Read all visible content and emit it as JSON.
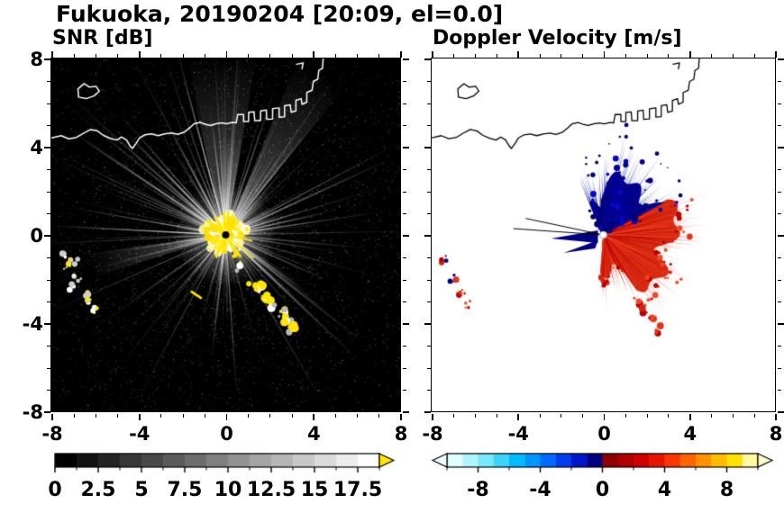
{
  "title": "Fukuoka, 20190204 [20:09, el=0.0]",
  "chart_data": {
    "type": "heatmap",
    "figure_title": "Fukuoka, 20190204 [20:09, el=0.0]",
    "station": "Fukuoka",
    "date": "20190204",
    "time": "20:09",
    "elevation_deg": 0.0,
    "panels": [
      {
        "title": "SNR [dB]",
        "background": "#000000",
        "xlim": [
          -8,
          8
        ],
        "ylim": [
          -8,
          8
        ],
        "xticks": [
          -8,
          -4,
          0,
          4,
          8
        ],
        "xtick_labels": [
          "-8",
          "-4",
          "0",
          "4",
          "8"
        ],
        "yticks": [
          8,
          4,
          0,
          -4,
          -8
        ],
        "ytick_labels": [
          "8",
          "4",
          "0",
          "-4",
          "-8"
        ],
        "show_ytick_labels": true,
        "minor_tick_step": 1,
        "colorbar": {
          "min": 0,
          "max": 18.75,
          "segments": 15,
          "palette": "grayscale-black-to-white",
          "over_arrow_color": "#ffe600",
          "tick_values": [
            0,
            2.5,
            5,
            7.5,
            10,
            12.5,
            15,
            17.5
          ],
          "tick_labels": [
            "0",
            "2.5",
            "5",
            "7.5",
            "10",
            "12.5",
            "15",
            "17.5"
          ],
          "minor_step": 1.25
        },
        "features": {
          "radar_center": [
            0,
            0
          ],
          "clutter": "radial ground-clutter streaks fanning out from radar site",
          "core": "strong echo core above 17.5 dB (yellow) around radar",
          "echo_chain": [
            [
              0.45,
              -1.0
            ],
            [
              3.15,
              -4.35
            ]
          ],
          "dash": [
            -1.35,
            -2.72
          ],
          "west_specks": [
            [
              -7.45,
              -0.95
            ],
            [
              -7.25,
              -1.45
            ],
            [
              -6.95,
              -1.25
            ],
            [
              -6.8,
              -1.95
            ],
            [
              -7.05,
              -2.35
            ],
            [
              -6.5,
              -2.6
            ],
            [
              -6.3,
              -3.05
            ],
            [
              -6.0,
              -3.35
            ]
          ]
        }
      },
      {
        "title": "Doppler Velocity [m/s]",
        "background": "#ffffff",
        "xlim": [
          -8,
          8
        ],
        "ylim": [
          -8,
          8
        ],
        "xticks": [
          -8,
          -4,
          0,
          4,
          8
        ],
        "xtick_labels": [
          "-8",
          "-4",
          "0",
          "4",
          "8"
        ],
        "yticks": [
          8,
          4,
          0,
          -4,
          -8
        ],
        "ytick_labels": [
          "8",
          "4",
          "0",
          "-4",
          "-8"
        ],
        "show_ytick_labels": false,
        "minor_tick_step": 1,
        "colorbar": {
          "min": -10,
          "max": 10,
          "segments": 20,
          "segment_colors": [
            "#e0ffff",
            "#b0f4ff",
            "#78e8ff",
            "#3cd4ff",
            "#00bcff",
            "#0096ff",
            "#006aff",
            "#003cf0",
            "#0016c8",
            "#000080",
            "#8c0000",
            "#b00000",
            "#d00000",
            "#e81400",
            "#f83800",
            "#ff6400",
            "#ff9000",
            "#ffbc00",
            "#ffe200",
            "#fff9a0"
          ],
          "under_arrow_color": "#f0ffff",
          "over_arrow_color": "#ffffc8",
          "tick_values": [
            -8,
            -4,
            0,
            4,
            8
          ],
          "tick_labels": [
            "-8",
            "-4",
            "0",
            "4",
            "8"
          ],
          "minor_step": 2
        },
        "features": {
          "radar_center": [
            0,
            0
          ],
          "toward": "negative velocities (navy blue) north/northeast of radar",
          "away": "positive velocities (red) east/southeast of radar",
          "blob_angle_deg": [
            -95,
            115
          ],
          "blob_radius_km": [
            1.8,
            3.6
          ],
          "west_wedge_deg": [
            168,
            202
          ],
          "south_specks": [
            [
              1.6,
              -3.0
            ],
            [
              1.95,
              -3.35
            ],
            [
              2.3,
              -3.85
            ],
            [
              2.62,
              -4.3
            ]
          ],
          "west_specks": [
            [
              -7.4,
              -1.05
            ],
            [
              -7.0,
              -1.9
            ],
            [
              -6.6,
              -2.6
            ],
            [
              -6.35,
              -3.1
            ]
          ]
        }
      }
    ],
    "coastline": [
      [
        -8.0,
        4.4
      ],
      [
        -7.55,
        4.5
      ],
      [
        -7.2,
        4.36
      ],
      [
        -6.85,
        4.42
      ],
      [
        -6.55,
        4.6
      ],
      [
        -6.2,
        4.78
      ],
      [
        -5.9,
        4.72
      ],
      [
        -5.62,
        4.52
      ],
      [
        -5.3,
        4.38
      ],
      [
        -5.0,
        4.3
      ],
      [
        -4.78,
        4.44
      ],
      [
        -4.55,
        4.3
      ],
      [
        -4.4,
        4.05
      ],
      [
        -4.28,
        3.92
      ],
      [
        -4.12,
        4.14
      ],
      [
        -3.95,
        4.4
      ],
      [
        -3.7,
        4.54
      ],
      [
        -3.4,
        4.58
      ],
      [
        -3.1,
        4.5
      ],
      [
        -2.8,
        4.58
      ],
      [
        -2.5,
        4.62
      ],
      [
        -2.2,
        4.56
      ],
      [
        -1.9,
        4.66
      ],
      [
        -1.65,
        4.86
      ],
      [
        -1.45,
        5.04
      ],
      [
        -1.18,
        5.1
      ],
      [
        -0.95,
        5.02
      ],
      [
        -0.7,
        4.96
      ],
      [
        -0.45,
        5.04
      ],
      [
        -0.2,
        5.08
      ],
      [
        0.05,
        5.04
      ],
      [
        0.3,
        5.1
      ],
      [
        0.48,
        5.08
      ],
      [
        0.55,
        5.46
      ],
      [
        0.82,
        5.46
      ],
      [
        0.82,
        5.14
      ],
      [
        1.05,
        5.14
      ],
      [
        1.05,
        5.56
      ],
      [
        1.3,
        5.58
      ],
      [
        1.33,
        5.18
      ],
      [
        1.6,
        5.18
      ],
      [
        1.6,
        5.62
      ],
      [
        1.86,
        5.66
      ],
      [
        1.88,
        5.24
      ],
      [
        2.15,
        5.26
      ],
      [
        2.15,
        5.72
      ],
      [
        2.45,
        5.76
      ],
      [
        2.45,
        5.34
      ],
      [
        2.7,
        5.36
      ],
      [
        2.7,
        5.86
      ],
      [
        2.96,
        5.9
      ],
      [
        3.0,
        5.56
      ],
      [
        3.22,
        5.62
      ],
      [
        3.22,
        6.1
      ],
      [
        3.46,
        6.18
      ],
      [
        3.5,
        5.92
      ],
      [
        3.72,
        6.02
      ],
      [
        3.72,
        6.46
      ],
      [
        3.96,
        6.56
      ],
      [
        4.02,
        6.96
      ],
      [
        4.22,
        7.06
      ],
      [
        4.27,
        7.46
      ],
      [
        4.44,
        7.56
      ],
      [
        4.47,
        8.0
      ]
    ],
    "island": [
      [
        -6.75,
        6.25
      ],
      [
        -6.4,
        6.18
      ],
      [
        -6.05,
        6.3
      ],
      [
        -5.8,
        6.52
      ],
      [
        -5.95,
        6.74
      ],
      [
        -6.25,
        6.7
      ],
      [
        -6.5,
        6.86
      ],
      [
        -6.78,
        6.62
      ],
      [
        -6.75,
        6.25
      ]
    ],
    "top_mark": [
      [
        3.25,
        7.74
      ],
      [
        3.55,
        7.8
      ],
      [
        3.5,
        7.54
      ]
    ]
  }
}
